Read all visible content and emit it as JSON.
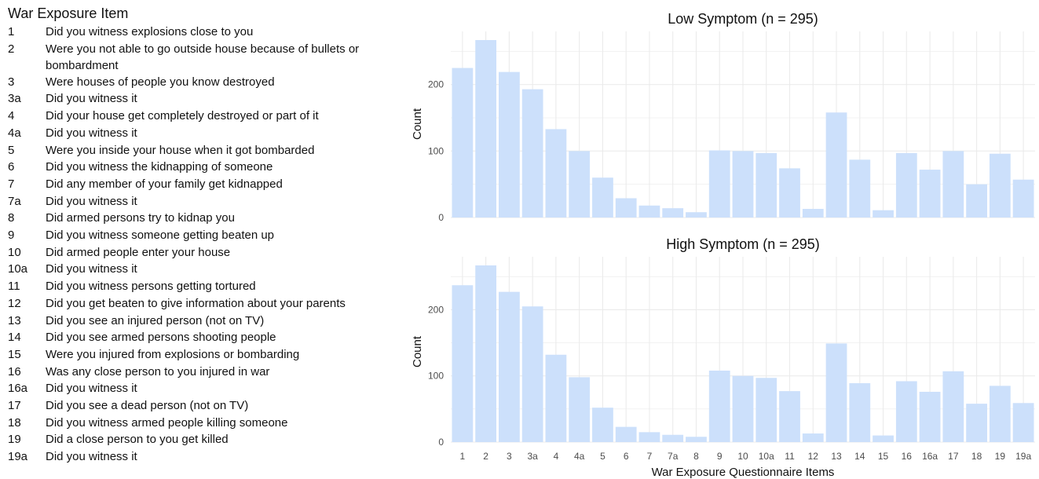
{
  "legend": {
    "title": "War Exposure Item",
    "items": [
      {
        "num": "1",
        "text": "Did you witness explosions close to you"
      },
      {
        "num": "2",
        "text": "Were you not able to go outside house because of bullets or bombardment"
      },
      {
        "num": "3",
        "text": "Were houses of people you know destroyed"
      },
      {
        "num": "3a",
        "text": "Did you witness it"
      },
      {
        "num": "4",
        "text": "Did your house get completely destroyed or part of it"
      },
      {
        "num": "4a",
        "text": "Did you witness it"
      },
      {
        "num": "5",
        "text": "Were you inside your house when it got bombarded"
      },
      {
        "num": "6",
        "text": "Did you witness the kidnapping of someone"
      },
      {
        "num": "7",
        "text": "Did any member of your family get kidnapped"
      },
      {
        "num": "7a",
        "text": "Did you witness it"
      },
      {
        "num": "8",
        "text": "Did armed persons try to kidnap you"
      },
      {
        "num": "9",
        "text": "Did you witness someone getting beaten up"
      },
      {
        "num": "10",
        "text": "Did armed people enter your house"
      },
      {
        "num": "10a",
        "text": "Did you witness it"
      },
      {
        "num": "11",
        "text": "Did you witness persons getting tortured"
      },
      {
        "num": "12",
        "text": "Did you get beaten to give information about your parents"
      },
      {
        "num": "13",
        "text": "Did you see an injured person (not on TV)"
      },
      {
        "num": "14",
        "text": "Did you see armed persons shooting people"
      },
      {
        "num": "15",
        "text": "Were you injured from explosions or bombarding"
      },
      {
        "num": "16",
        "text": "Was any close person to you injured in war"
      },
      {
        "num": "16a",
        "text": "Did you witness it"
      },
      {
        "num": "17",
        "text": "Did you see a dead person (not on TV)"
      },
      {
        "num": "18",
        "text": "Did you witness armed people killing someone"
      },
      {
        "num": "19",
        "text": "Did a close person to you get killed"
      },
      {
        "num": "19a",
        "text": "Did you witness it"
      }
    ]
  },
  "colors": {
    "bar": "#cce0fb",
    "grid": "#ebebeb",
    "text": "#111111",
    "axis_text": "#4d4d4d"
  },
  "chart_data": [
    {
      "type": "bar",
      "title": "Low Symptom (n = 295)",
      "xlabel": "",
      "ylabel": "Count",
      "ylim": [
        0,
        280
      ],
      "yticks": [
        0,
        100,
        200
      ],
      "grid": true,
      "categories": [
        "1",
        "2",
        "3",
        "3a",
        "4",
        "4a",
        "5",
        "6",
        "7",
        "7a",
        "8",
        "9",
        "10",
        "10a",
        "11",
        "12",
        "13",
        "14",
        "15",
        "16",
        "16a",
        "17",
        "18",
        "19",
        "19a"
      ],
      "values": [
        225,
        267,
        219,
        193,
        133,
        100,
        60,
        29,
        18,
        14,
        8,
        101,
        100,
        97,
        74,
        13,
        158,
        87,
        11,
        97,
        72,
        100,
        50,
        96,
        57
      ]
    },
    {
      "type": "bar",
      "title": "High Symptom (n = 295)",
      "xlabel": "War Exposure Questionnaire Items",
      "ylabel": "Count",
      "ylim": [
        0,
        280
      ],
      "yticks": [
        0,
        100,
        200
      ],
      "grid": true,
      "categories": [
        "1",
        "2",
        "3",
        "3a",
        "4",
        "4a",
        "5",
        "6",
        "7",
        "7a",
        "8",
        "9",
        "10",
        "10a",
        "11",
        "12",
        "13",
        "14",
        "15",
        "16",
        "16a",
        "17",
        "18",
        "19",
        "19a"
      ],
      "values": [
        237,
        267,
        227,
        205,
        132,
        98,
        52,
        23,
        15,
        11,
        8,
        108,
        100,
        97,
        77,
        13,
        149,
        89,
        10,
        92,
        76,
        107,
        58,
        85,
        59
      ]
    }
  ]
}
